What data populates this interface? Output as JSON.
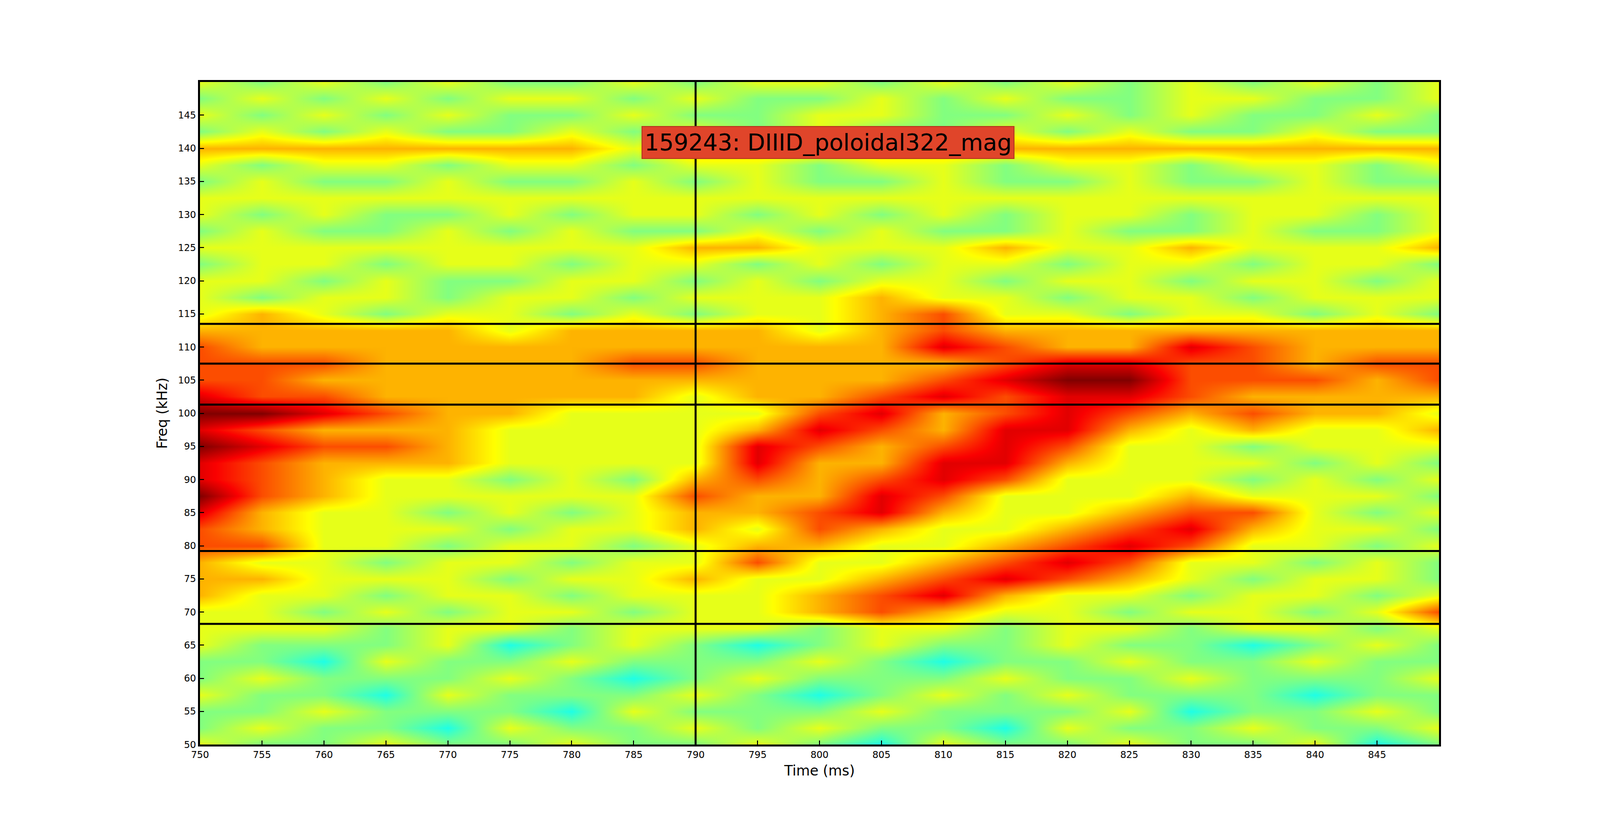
{
  "chart_data": {
    "type": "heatmap",
    "title": "159243: DIIID_poloidal322_mag",
    "x_label": "Time (ms)",
    "y_label": "Freq (kHz)",
    "xlim": [
      750,
      850
    ],
    "ylim": [
      50,
      150
    ],
    "xticks": [
      750,
      755,
      760,
      765,
      770,
      775,
      780,
      785,
      790,
      795,
      800,
      805,
      810,
      815,
      820,
      825,
      830,
      835,
      840,
      845
    ],
    "yticks": [
      50,
      55,
      60,
      65,
      70,
      75,
      80,
      85,
      90,
      95,
      100,
      105,
      110,
      115,
      120,
      125,
      130,
      135,
      140,
      145
    ],
    "zlim": [
      0,
      10
    ],
    "vlines": [
      790
    ],
    "hlines": [
      113.5,
      107.5,
      101.3,
      79.2,
      68.2
    ],
    "x": [
      750,
      755,
      760,
      765,
      770,
      775,
      780,
      785,
      790,
      795,
      800,
      805,
      810,
      815,
      820,
      825,
      830,
      835,
      840,
      845,
      850
    ],
    "y": [
      50,
      52.5,
      55,
      57.5,
      60,
      62.5,
      65,
      67.5,
      70,
      72.5,
      75,
      77.5,
      80,
      82.5,
      85,
      87.5,
      90,
      92.5,
      95,
      97.5,
      100,
      102.5,
      105,
      107.5,
      110,
      112.5,
      115,
      117.5,
      120,
      122.5,
      125,
      127.5,
      130,
      132.5,
      135,
      137.5,
      140,
      142.5,
      145,
      147.5,
      150
    ],
    "z": [
      [
        6,
        5,
        5,
        6,
        5,
        5,
        6,
        5,
        5,
        6,
        5,
        4,
        6,
        5,
        5,
        6,
        5,
        5,
        6,
        4,
        5
      ],
      [
        5,
        6,
        5,
        5,
        4,
        6,
        5,
        5,
        6,
        5,
        6,
        5,
        5,
        4,
        6,
        5,
        5,
        6,
        5,
        5,
        6
      ],
      [
        5,
        5,
        6,
        5,
        5,
        5,
        4,
        6,
        5,
        5,
        5,
        6,
        5,
        5,
        5,
        6,
        4,
        5,
        5,
        6,
        5
      ],
      [
        6,
        5,
        5,
        4,
        6,
        5,
        5,
        5,
        6,
        5,
        4,
        5,
        6,
        5,
        6,
        5,
        5,
        5,
        4,
        5,
        5
      ],
      [
        5,
        6,
        5,
        5,
        5,
        6,
        5,
        4,
        5,
        6,
        5,
        5,
        5,
        6,
        5,
        5,
        6,
        5,
        5,
        5,
        6
      ],
      [
        5,
        5,
        4,
        6,
        5,
        5,
        6,
        5,
        5,
        5,
        6,
        5,
        4,
        5,
        5,
        6,
        5,
        5,
        6,
        5,
        5
      ],
      [
        6,
        5,
        5,
        5,
        6,
        4,
        5,
        6,
        5,
        4,
        5,
        6,
        5,
        5,
        6,
        5,
        5,
        4,
        5,
        6,
        5
      ],
      [
        6,
        6,
        6,
        5,
        6,
        6,
        5,
        6,
        6,
        6,
        5,
        6,
        6,
        5,
        6,
        6,
        5,
        6,
        6,
        5,
        6
      ],
      [
        6,
        6,
        5,
        6,
        5,
        6,
        6,
        5,
        6,
        6,
        7,
        8,
        7,
        6,
        6,
        5,
        6,
        6,
        5,
        6,
        8
      ],
      [
        7,
        6,
        6,
        5,
        6,
        6,
        5,
        6,
        6,
        6,
        7,
        8,
        9,
        7,
        6,
        6,
        5,
        6,
        6,
        5,
        6
      ],
      [
        7,
        7,
        6,
        6,
        6,
        5,
        6,
        6,
        7,
        6,
        6,
        7,
        8,
        9,
        8,
        7,
        6,
        5,
        6,
        6,
        5
      ],
      [
        7,
        6,
        6,
        5,
        6,
        6,
        5,
        6,
        6,
        8,
        6,
        6,
        7,
        8,
        9,
        8,
        6,
        6,
        5,
        6,
        5
      ],
      [
        8,
        8,
        6,
        6,
        5,
        6,
        6,
        5,
        6,
        7,
        7,
        6,
        6,
        7,
        8,
        9,
        8,
        6,
        6,
        5,
        6
      ],
      [
        8,
        7,
        6,
        6,
        6,
        5,
        6,
        6,
        7,
        6,
        8,
        7,
        6,
        6,
        7,
        8,
        9,
        7,
        6,
        6,
        5
      ],
      [
        9,
        7,
        6,
        6,
        5,
        6,
        5,
        6,
        7,
        7,
        8,
        9,
        7,
        6,
        6,
        7,
        8,
        8,
        6,
        5,
        6
      ],
      [
        10,
        8,
        7,
        6,
        6,
        6,
        6,
        6,
        8,
        7,
        7,
        9,
        8,
        6,
        6,
        6,
        7,
        6,
        6,
        6,
        5
      ],
      [
        9,
        8,
        7,
        6,
        6,
        5,
        6,
        5,
        7,
        8,
        7,
        8,
        9,
        8,
        6,
        6,
        6,
        5,
        6,
        5,
        6
      ],
      [
        9,
        8,
        7,
        7,
        7,
        6,
        6,
        6,
        6,
        9,
        7,
        7,
        9,
        9,
        7,
        6,
        6,
        6,
        5,
        6,
        5
      ],
      [
        10,
        9,
        8,
        8,
        7,
        6,
        6,
        6,
        6,
        9,
        8,
        7,
        8,
        9,
        8,
        6,
        6,
        5,
        6,
        6,
        6
      ],
      [
        9,
        8,
        7,
        7,
        7,
        6,
        6,
        6,
        6,
        7,
        9,
        8,
        7,
        9,
        9,
        7,
        6,
        7,
        6,
        6,
        7
      ],
      [
        10,
        10,
        9,
        8,
        7,
        7,
        6,
        6,
        6,
        6,
        8,
        9,
        7,
        8,
        9,
        8,
        7,
        8,
        7,
        7,
        6
      ],
      [
        9,
        8,
        8,
        7,
        7,
        7,
        7,
        7,
        6,
        7,
        7,
        8,
        9,
        8,
        9,
        9,
        8,
        7,
        7,
        7,
        7
      ],
      [
        8,
        8,
        7,
        7,
        7,
        7,
        7,
        7,
        7,
        7,
        7,
        7,
        8,
        9,
        10,
        10,
        8,
        8,
        8,
        7,
        8
      ],
      [
        8,
        8,
        8,
        7,
        7,
        7,
        7,
        8,
        8,
        7,
        7,
        7,
        7,
        8,
        9,
        9,
        8,
        8,
        7,
        8,
        8
      ],
      [
        8,
        7,
        7,
        7,
        7,
        7,
        7,
        7,
        7,
        7,
        7,
        7,
        9,
        8,
        7,
        7,
        9,
        8,
        7,
        7,
        7
      ],
      [
        7,
        7,
        7,
        7,
        7,
        6,
        7,
        7,
        7,
        7,
        6,
        7,
        8,
        7,
        7,
        7,
        7,
        7,
        7,
        7,
        7
      ],
      [
        6,
        7,
        6,
        5,
        6,
        6,
        5,
        6,
        5,
        6,
        6,
        7,
        8,
        6,
        6,
        5,
        6,
        6,
        5,
        6,
        5
      ],
      [
        6,
        5,
        6,
        6,
        5,
        6,
        6,
        5,
        6,
        6,
        6,
        7,
        6,
        6,
        5,
        6,
        6,
        5,
        6,
        6,
        6
      ],
      [
        6,
        6,
        5,
        6,
        5,
        5,
        6,
        6,
        5,
        6,
        5,
        6,
        6,
        5,
        6,
        6,
        5,
        6,
        6,
        5,
        6
      ],
      [
        5,
        6,
        6,
        5,
        6,
        6,
        5,
        6,
        6,
        5,
        6,
        5,
        6,
        6,
        5,
        6,
        6,
        5,
        6,
        6,
        5
      ],
      [
        6,
        6,
        6,
        6,
        6,
        6,
        6,
        6,
        7,
        7,
        6,
        6,
        6,
        7,
        6,
        6,
        7,
        6,
        6,
        6,
        7
      ],
      [
        5,
        6,
        5,
        5,
        6,
        5,
        6,
        5,
        5,
        6,
        5,
        6,
        5,
        5,
        6,
        5,
        5,
        6,
        5,
        5,
        6
      ],
      [
        6,
        5,
        6,
        5,
        5,
        6,
        5,
        6,
        6,
        5,
        6,
        5,
        6,
        5,
        6,
        6,
        5,
        6,
        6,
        5,
        6
      ],
      [
        6,
        6,
        6,
        6,
        6,
        6,
        6,
        6,
        6,
        6,
        6,
        6,
        6,
        6,
        6,
        6,
        6,
        6,
        6,
        6,
        6
      ],
      [
        5,
        6,
        5,
        5,
        6,
        5,
        5,
        6,
        5,
        6,
        5,
        5,
        6,
        5,
        5,
        6,
        5,
        5,
        6,
        5,
        5
      ],
      [
        6,
        5,
        6,
        6,
        5,
        6,
        6,
        5,
        6,
        6,
        5,
        6,
        6,
        5,
        6,
        6,
        5,
        6,
        6,
        5,
        6
      ],
      [
        7,
        7,
        7,
        7,
        7,
        7,
        7,
        6,
        7,
        7,
        7,
        7,
        7,
        7,
        7,
        7,
        7,
        7,
        7,
        7,
        7
      ],
      [
        5,
        6,
        5,
        6,
        5,
        5,
        6,
        5,
        6,
        5,
        6,
        5,
        5,
        6,
        5,
        6,
        5,
        5,
        6,
        5,
        5
      ],
      [
        6,
        5,
        6,
        5,
        6,
        5,
        5,
        6,
        5,
        5,
        6,
        6,
        5,
        5,
        6,
        5,
        6,
        5,
        5,
        6,
        5
      ],
      [
        5,
        6,
        5,
        6,
        5,
        6,
        6,
        5,
        6,
        5,
        5,
        6,
        5,
        6,
        5,
        5,
        6,
        6,
        5,
        5,
        6
      ],
      [
        6,
        5,
        6,
        5,
        6,
        5,
        5,
        6,
        5,
        6,
        6,
        5,
        6,
        5,
        6,
        5,
        6,
        5,
        6,
        5,
        6
      ]
    ]
  }
}
